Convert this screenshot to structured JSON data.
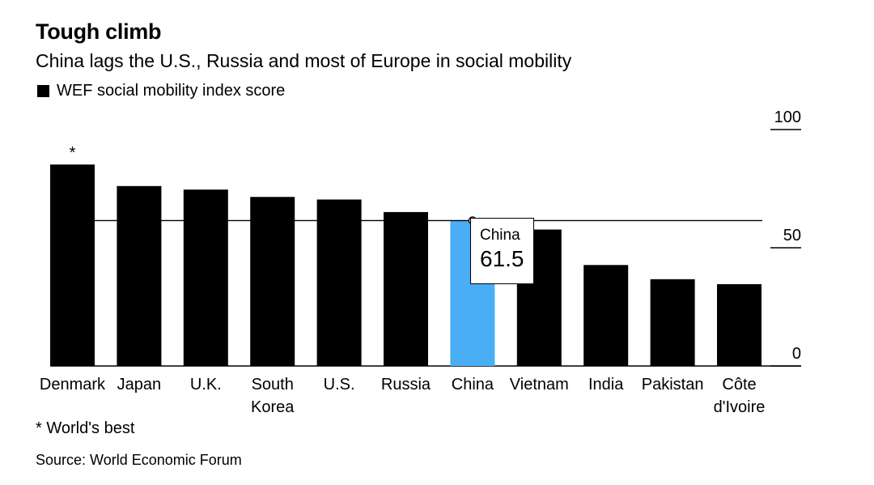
{
  "header": {
    "title": "Tough climb",
    "subtitle": "China lags the U.S., Russia and most of Europe in social mobility",
    "legend_label": "WEF social mobility index score"
  },
  "footer": {
    "footnote": "* World's best",
    "source": "Source: World Economic Forum"
  },
  "tooltip": {
    "country": "China",
    "value": "61.5"
  },
  "colors": {
    "bar": "#000000",
    "highlight": "#4aaef5",
    "line": "#000000"
  },
  "chart_data": {
    "type": "bar",
    "title": "Tough climb",
    "subtitle": "China lags the U.S., Russia and most of Europe in social mobility",
    "legend": [
      "WEF social mobility index score"
    ],
    "legend_position": "top-left",
    "categories": [
      "Denmark",
      "Japan",
      "U.K.",
      "South Korea",
      "U.S.",
      "Russia",
      "China",
      "Vietnam",
      "India",
      "Pakistan",
      "Côte d'Ivoire"
    ],
    "category_labels": [
      [
        "Denmark"
      ],
      [
        "Japan"
      ],
      [
        "U.K."
      ],
      [
        "South",
        "Korea"
      ],
      [
        "U.S."
      ],
      [
        "Russia"
      ],
      [
        "China"
      ],
      [
        "Vietnam"
      ],
      [
        "India"
      ],
      [
        "Pakistan"
      ],
      [
        "Côte",
        "d'Ivoire"
      ]
    ],
    "series": [
      {
        "name": "WEF social mobility index score",
        "values": [
          85.2,
          76.1,
          74.6,
          71.5,
          70.4,
          65.1,
          61.5,
          57.7,
          42.7,
          36.7,
          34.6
        ]
      }
    ],
    "highlight": "China",
    "annotation": {
      "category": "Denmark",
      "text": "*"
    },
    "reference_line": {
      "value": 61.5
    },
    "ylim": [
      0,
      100
    ],
    "yticks": [
      0,
      50,
      100
    ],
    "y_axis_side": "right",
    "xlabel": "",
    "ylabel": ""
  }
}
